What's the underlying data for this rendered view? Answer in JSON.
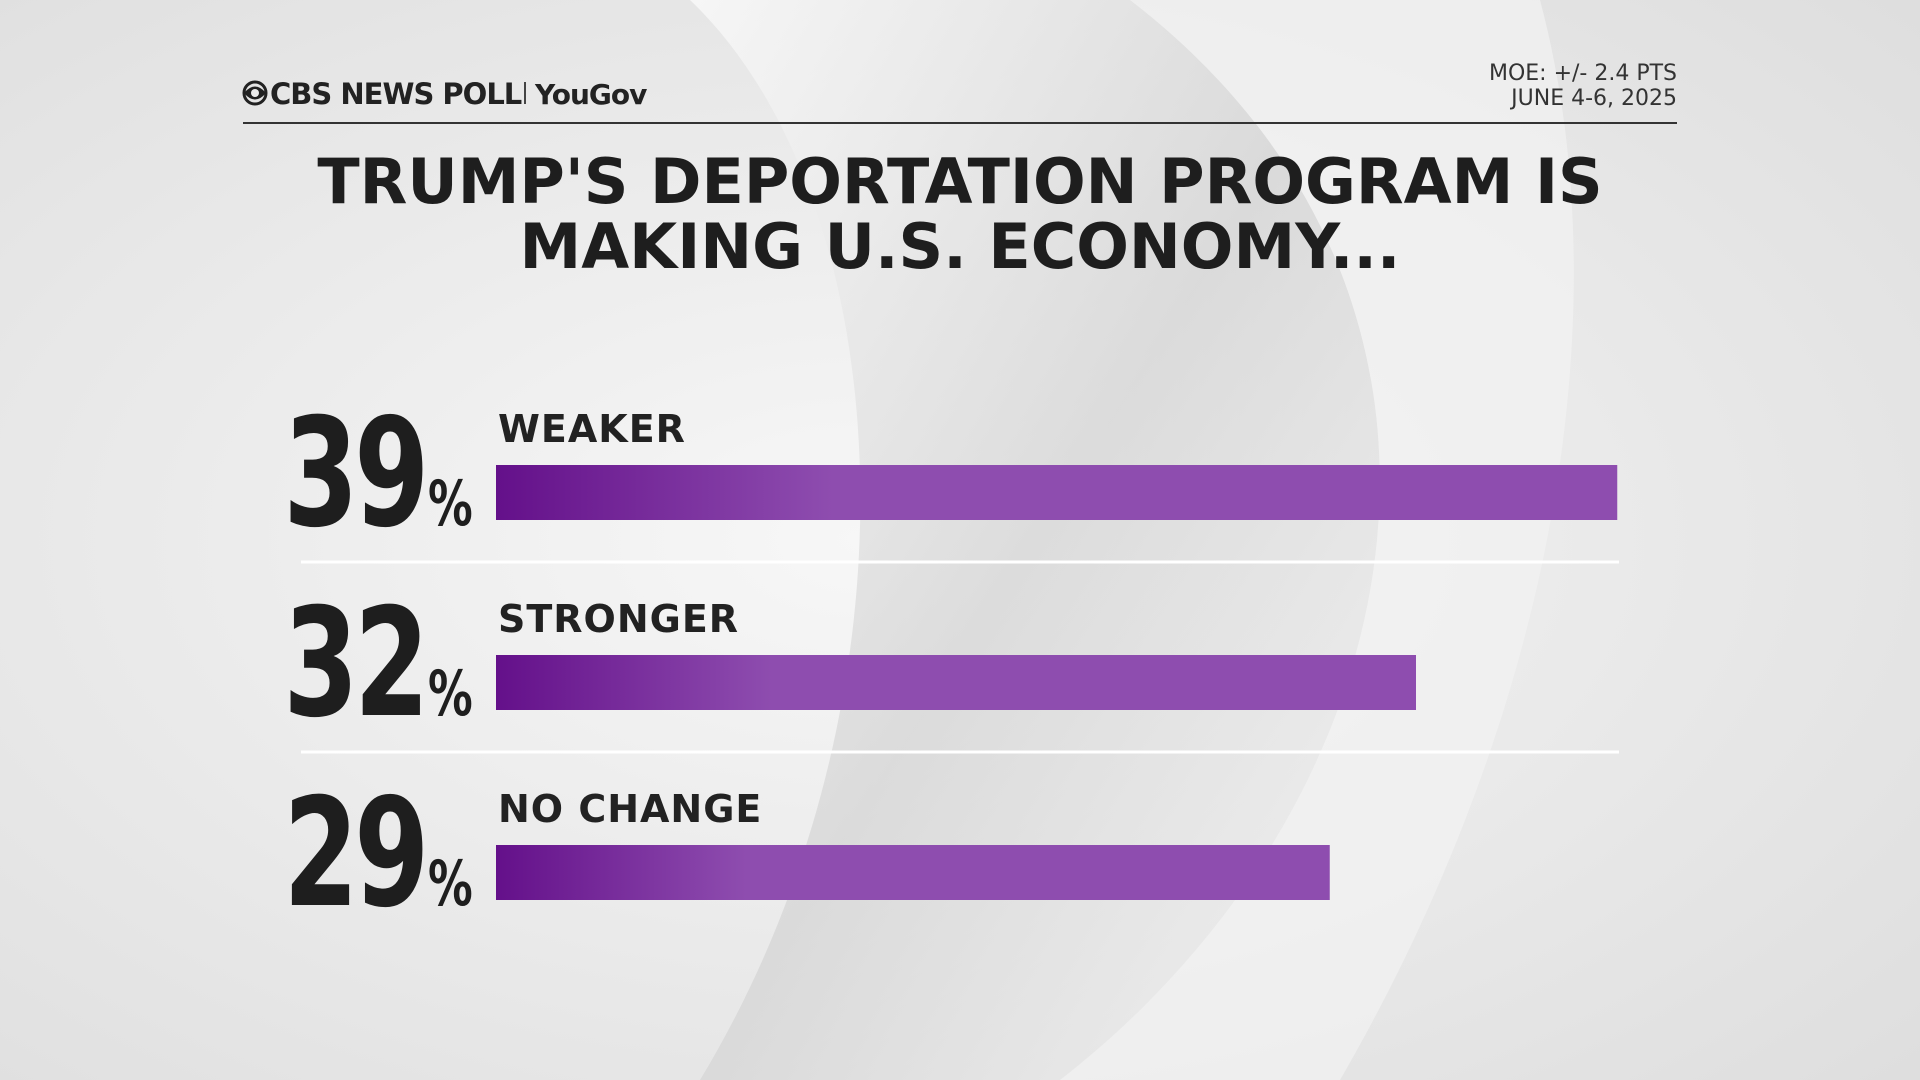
{
  "chart_data": {
    "type": "hbar",
    "source": "CBS NEWS POLL",
    "partner": "YouGov",
    "moe": "MOE: +/- 2.4 PTS",
    "date": "JUNE 4-6, 2025",
    "title": [
      "TRUMP'S DEPORTATION PROGRAM IS",
      "MAKING U.S. ECONOMY..."
    ],
    "categories": [
      "WEAKER",
      "STRONGER",
      "NO CHANGE"
    ],
    "values": [
      39,
      32,
      29
    ],
    "unit": "%",
    "color": "#8e4daf",
    "gradient_start": "#64108a"
  }
}
